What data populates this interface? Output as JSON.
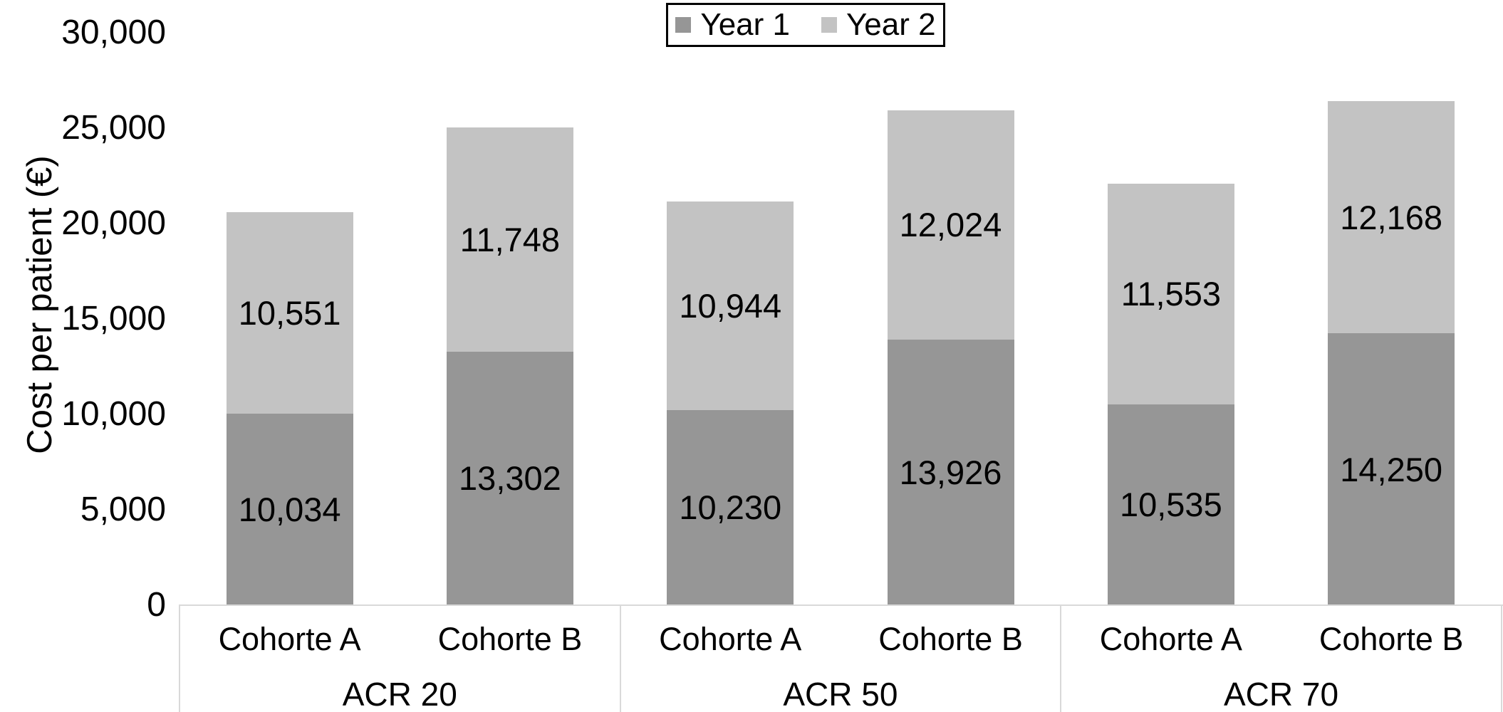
{
  "figure": {
    "y_axis_title": "Cost per patient (€)",
    "colors": {
      "year1": "#969696",
      "year2": "#c3c3c3",
      "axis_line": "#d9d9d9",
      "text": "#000000",
      "legend_border": "#000000"
    }
  },
  "chart_data": {
    "type": "bar",
    "stacked": true,
    "title": "",
    "xlabel": "",
    "ylabel": "Cost per patient (€)",
    "ylim": [
      0,
      30000
    ],
    "grid": false,
    "legend_position": "top-center",
    "ytick_values": [
      30000,
      25000,
      20000,
      15000,
      10000,
      5000,
      0
    ],
    "ytick_labels": [
      "30,000",
      "25,000",
      "20,000",
      "15,000",
      "10,000",
      "5,000",
      "0"
    ],
    "groups": [
      "ACR 20",
      "ACR 50",
      "ACR 70"
    ],
    "categories": [
      "Cohorte A",
      "Cohorte B",
      "Cohorte A",
      "Cohorte B",
      "Cohorte A",
      "Cohorte B"
    ],
    "series": [
      {
        "name": "Year 1",
        "color": "#969696",
        "values": [
          10034,
          13302,
          10230,
          13926,
          10535,
          14250
        ],
        "labels": [
          "10,034",
          "13,302",
          "10,230",
          "13,926",
          "10,535",
          "14,250"
        ]
      },
      {
        "name": "Year 2",
        "color": "#c3c3c3",
        "values": [
          10551,
          11748,
          10944,
          12024,
          11553,
          12168
        ],
        "labels": [
          "10,551",
          "11,748",
          "10,944",
          "12,024",
          "11,553",
          "12,168"
        ]
      }
    ],
    "totals": [
      20585,
      25050,
      21174,
      25950,
      22088,
      26418
    ]
  }
}
